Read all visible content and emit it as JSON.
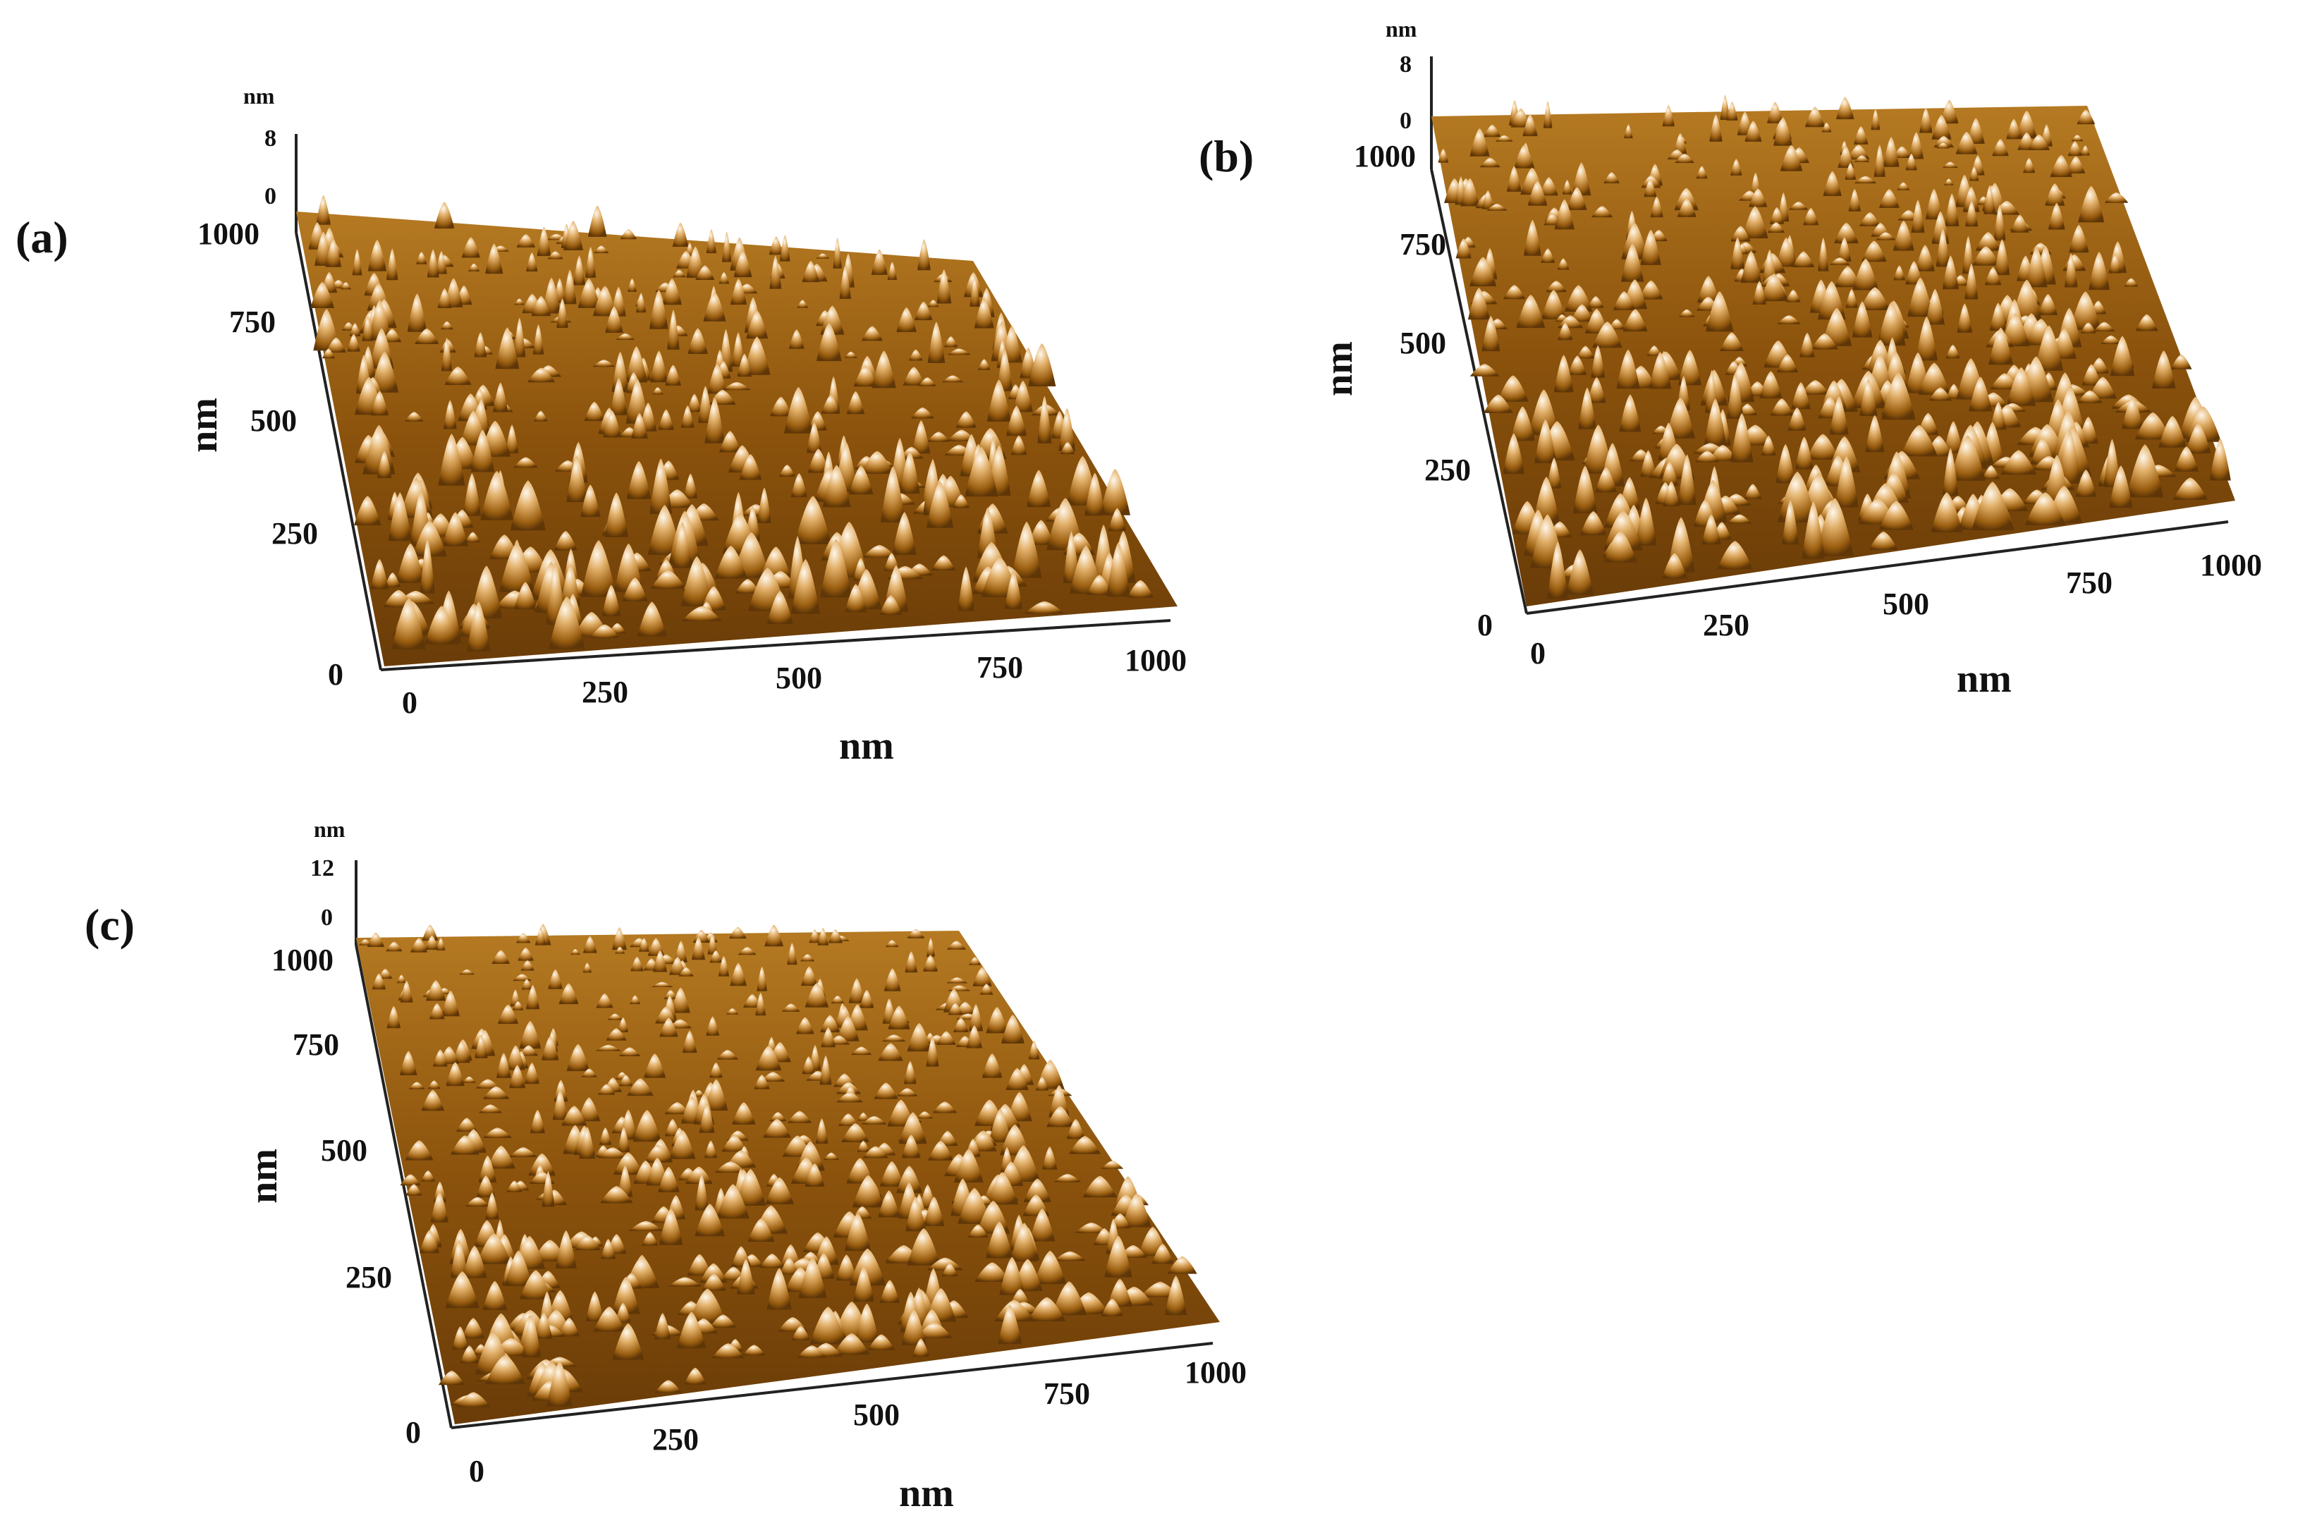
{
  "figure": {
    "panels": [
      {
        "id": "a",
        "label": "(a)",
        "z_unit": "nm",
        "z_ticks": [
          "8",
          "0"
        ],
        "y_ticks": [
          "1000",
          "750",
          "500",
          "250",
          "0"
        ],
        "x_ticks": [
          "0",
          "250",
          "500",
          "750",
          "1000"
        ],
        "x_title": "nm",
        "y_title": "nm"
      },
      {
        "id": "b",
        "label": "(b)",
        "z_unit": "nm",
        "z_ticks": [
          "8",
          "0"
        ],
        "y_ticks": [
          "1000",
          "750",
          "500",
          "250",
          "0"
        ],
        "x_ticks": [
          "0",
          "250",
          "500",
          "750",
          "1000"
        ],
        "x_title": "nm",
        "y_title": "nm"
      },
      {
        "id": "c",
        "label": "(c)",
        "z_unit": "nm",
        "z_ticks": [
          "12",
          "0"
        ],
        "y_ticks": [
          "1000",
          "750",
          "500",
          "250",
          "0"
        ],
        "x_ticks": [
          "0",
          "250",
          "500",
          "750",
          "1000"
        ],
        "x_title": "nm",
        "y_title": "nm"
      }
    ],
    "colors": {
      "surface_dark": "#5a3208",
      "surface_mid": "#a8680f",
      "surface_light": "#d9a24a",
      "highlight": "#fff6e6"
    }
  }
}
